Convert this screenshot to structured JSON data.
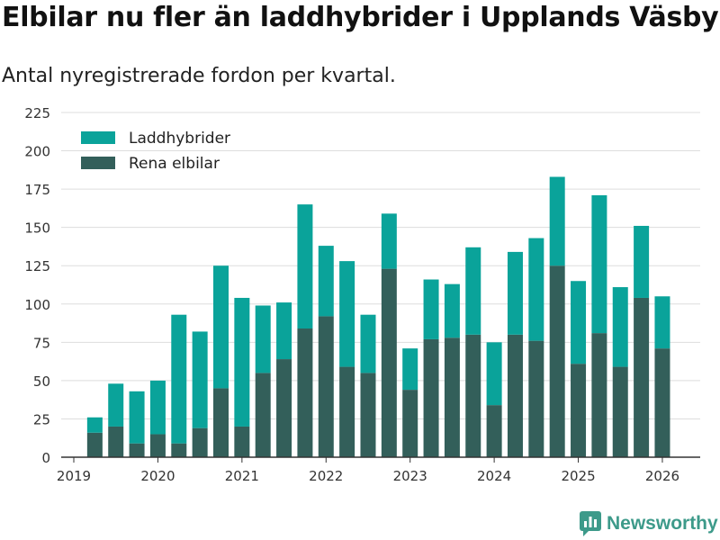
{
  "header": {
    "title": "Elbilar nu fler än laddhybrider i Upplands Väsby",
    "subtitle": "Antal nyregistrerade fordon per kvartal."
  },
  "branding": {
    "name": "Newsworthy",
    "icon": "newsworthy-logo-icon",
    "color": "#3d9a8a"
  },
  "chart_data": {
    "type": "bar",
    "stacked": true,
    "title": "Elbilar nu fler än laddhybrider i Upplands Väsby",
    "subtitle": "Antal nyregistrerade fordon per kvartal.",
    "xlabel": "",
    "ylabel": "",
    "ylim": [
      0,
      225
    ],
    "yticks": [
      0,
      25,
      50,
      75,
      100,
      125,
      150,
      175,
      200,
      225
    ],
    "xticks": [
      "2019",
      "2020",
      "2021",
      "2022",
      "2023",
      "2024",
      "2025",
      "2026"
    ],
    "grid": true,
    "legend_position": "top-left",
    "categories": [
      "2019 Q2",
      "2019 Q3",
      "2019 Q4",
      "2020 Q1",
      "2020 Q2",
      "2020 Q3",
      "2020 Q4",
      "2021 Q1",
      "2021 Q2",
      "2021 Q3",
      "2021 Q4",
      "2022 Q1",
      "2022 Q2",
      "2022 Q3",
      "2022 Q4",
      "2023 Q1",
      "2023 Q2",
      "2023 Q3",
      "2023 Q4",
      "2024 Q1",
      "2024 Q2",
      "2024 Q3",
      "2024 Q4",
      "2025 Q1",
      "2025 Q2",
      "2025 Q3",
      "2025 Q4",
      "2026 Q1"
    ],
    "series": [
      {
        "name": "Rena elbilar",
        "color": "#335f5a",
        "values": [
          16,
          20,
          9,
          15,
          9,
          19,
          45,
          20,
          55,
          64,
          84,
          92,
          59,
          55,
          123,
          44,
          77,
          78,
          80,
          34,
          80,
          76,
          125,
          61,
          81,
          59,
          104,
          71
        ]
      },
      {
        "name": "Laddhybrider",
        "color": "#0aa39a",
        "values": [
          10,
          28,
          34,
          35,
          84,
          63,
          80,
          84,
          44,
          37,
          81,
          46,
          69,
          38,
          36,
          27,
          39,
          35,
          57,
          41,
          54,
          67,
          58,
          54,
          90,
          52,
          47,
          34
        ]
      }
    ]
  }
}
